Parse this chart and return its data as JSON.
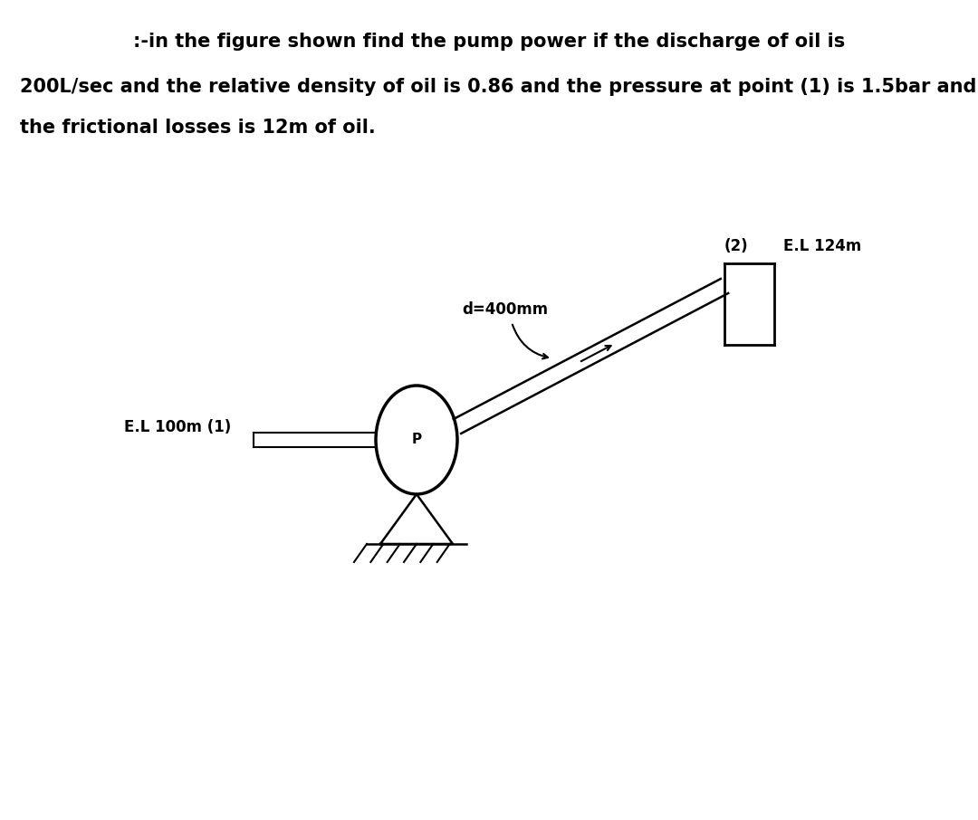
{
  "title_line1": ":-in the figure shown find the pump power if the discharge of oil is",
  "title_line2": "200L/sec and the relative density of oil is 0.86 and the pressure at point (1) is 1.5bar and",
  "title_line3": "the frictional losses is 12m of oil.",
  "label_d": "d=400mm",
  "label_point2": "(2)",
  "label_EL124": "E.L 124m",
  "label_EL100": "E.L 100m (1)",
  "label_P": "P",
  "bg_color": "#ffffff",
  "line_color": "#000000",
  "text_color": "#000000",
  "title_fontsize": 15,
  "diagram_fontsize": 12
}
